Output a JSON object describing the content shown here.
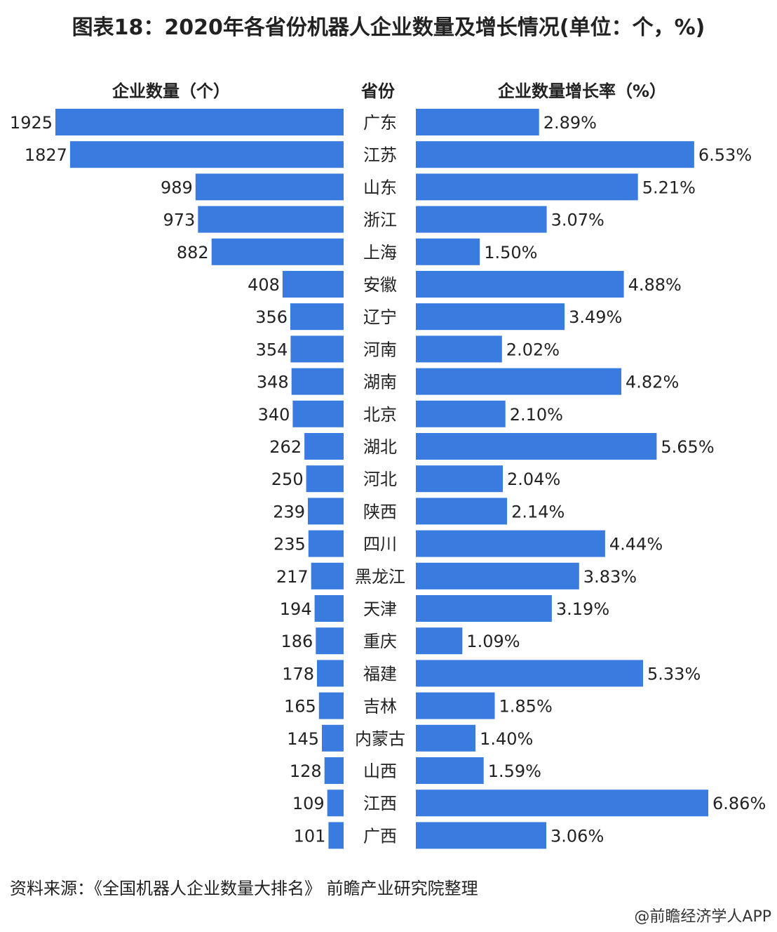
{
  "title": "图表18：2020年各省份机器人企业数量及增长情况(单位：个，%)",
  "headers": {
    "left": "企业数量（个）",
    "middle": "省份",
    "right": "企业数量增长率（%）"
  },
  "chart_data": {
    "type": "bar",
    "orientation": "horizontal-butterfly",
    "title": "图表18：2020年各省份机器人企业数量及增长情况(单位：个，%)",
    "categories": [
      "广东",
      "江苏",
      "山东",
      "浙江",
      "上海",
      "安徽",
      "辽宁",
      "河南",
      "湖南",
      "北京",
      "湖北",
      "河北",
      "陕西",
      "四川",
      "黑龙江",
      "天津",
      "重庆",
      "福建",
      "吉林",
      "内蒙古",
      "山西",
      "江西",
      "广西"
    ],
    "series": [
      {
        "name": "企业数量（个）",
        "values": [
          1925,
          1827,
          989,
          973,
          882,
          408,
          356,
          354,
          348,
          340,
          262,
          250,
          239,
          235,
          217,
          194,
          186,
          178,
          165,
          145,
          128,
          109,
          101
        ],
        "labels": [
          "1925",
          "1827",
          "989",
          "973",
          "882",
          "408",
          "356",
          "354",
          "348",
          "340",
          "262",
          "250",
          "239",
          "235",
          "217",
          "194",
          "186",
          "178",
          "165",
          "145",
          "128",
          "109",
          "101"
        ]
      },
      {
        "name": "企业数量增长率（%）",
        "values": [
          2.89,
          6.53,
          5.21,
          3.07,
          1.5,
          4.88,
          3.49,
          2.02,
          4.82,
          2.1,
          5.65,
          2.04,
          2.14,
          4.44,
          3.83,
          3.19,
          1.09,
          5.33,
          1.85,
          1.4,
          1.59,
          6.86,
          3.06
        ],
        "labels": [
          "2.89%",
          "6.53%",
          "5.21%",
          "3.07%",
          "1.50%",
          "4.88%",
          "3.49%",
          "2.02%",
          "4.82%",
          "2.10%",
          "5.65%",
          "2.04%",
          "2.14%",
          "4.44%",
          "3.83%",
          "3.19%",
          "1.09%",
          "5.33%",
          "1.85%",
          "1.40%",
          "1.59%",
          "6.86%",
          "3.06%"
        ]
      }
    ],
    "colors": {
      "bar": "#3a7be0"
    }
  },
  "source": "资料来源：《全国机器人企业数量大排名》 前瞻产业研究院整理",
  "credit": "@前瞻经济学人APP"
}
